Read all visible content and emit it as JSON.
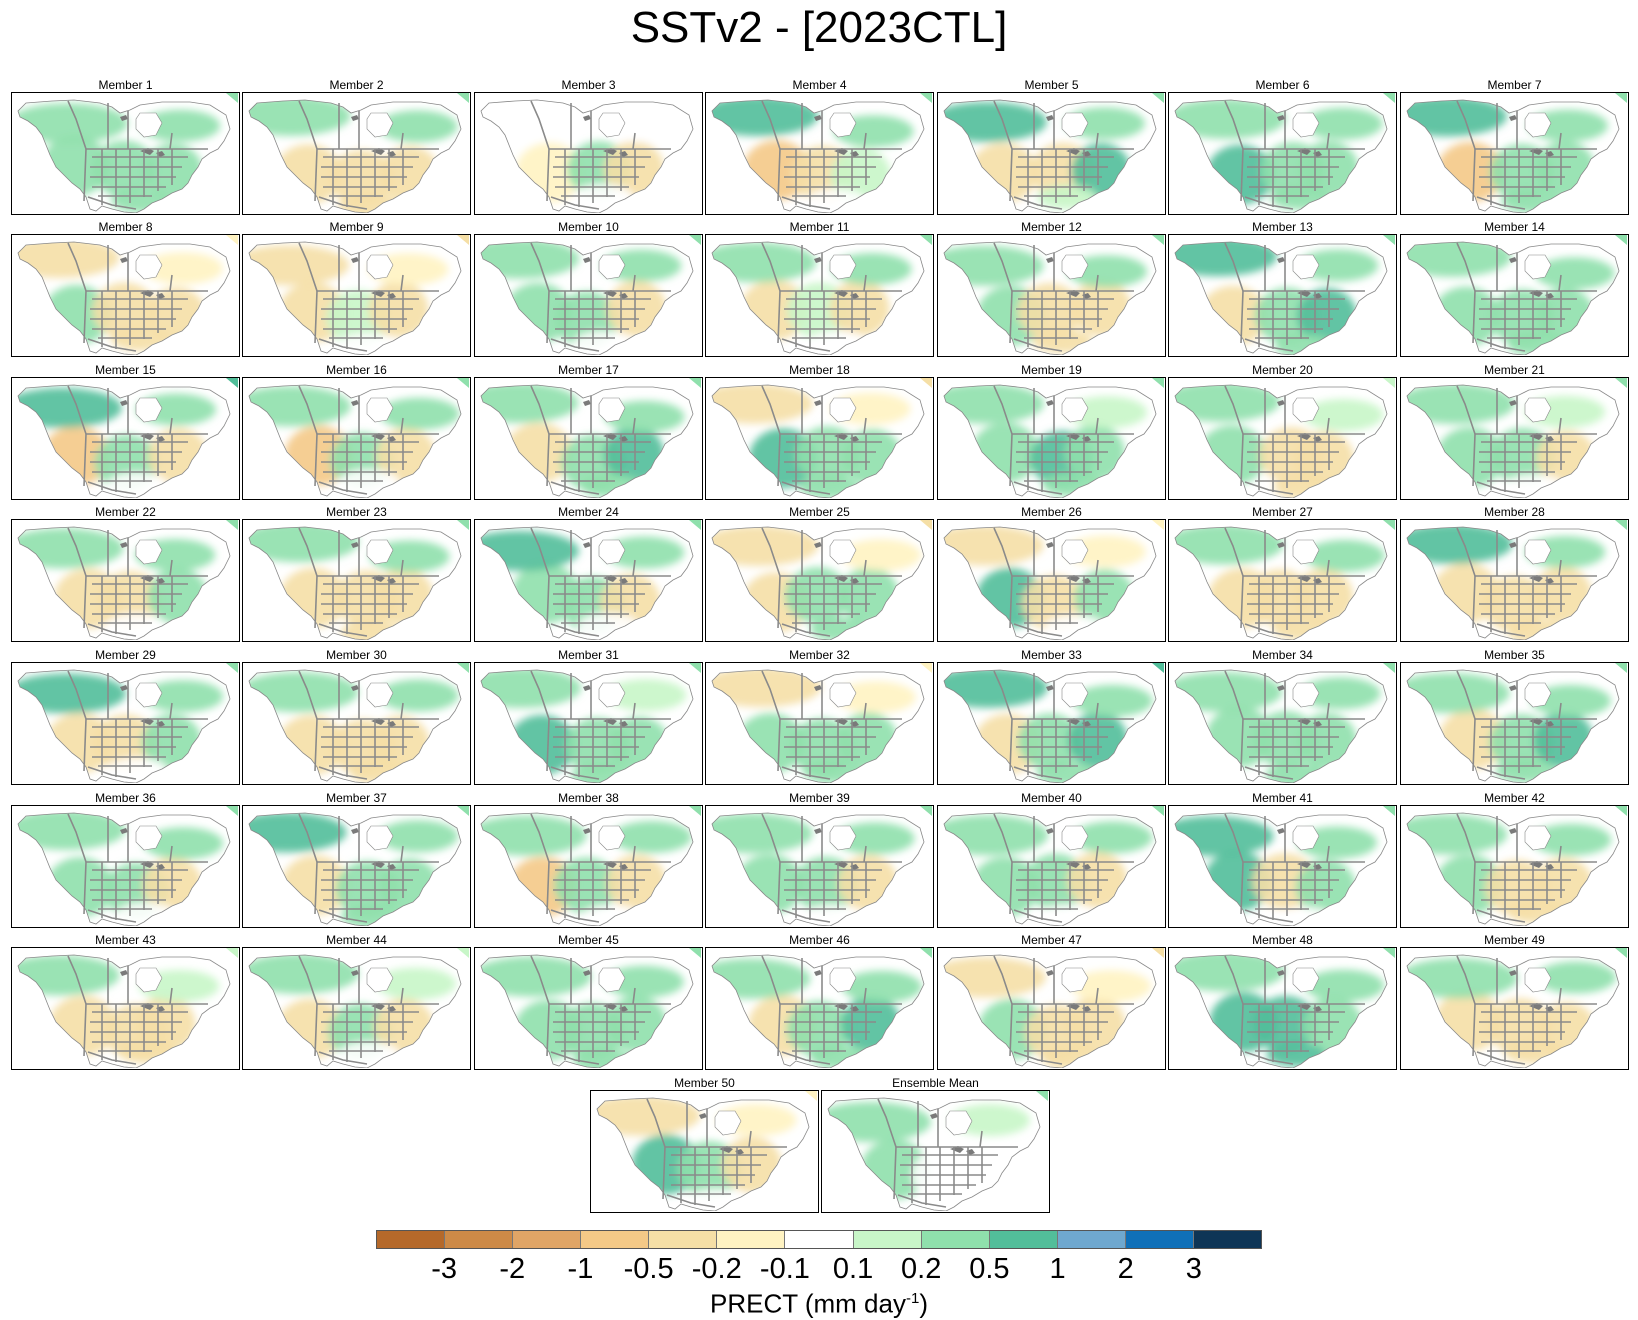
{
  "figure": {
    "title": "SSTv2 - [2023CTL]",
    "variable_label": "PRECT (mm day",
    "unit_exponent": "-1",
    "unit_close": ")"
  },
  "colors": {
    "land_outline": "#888888",
    "state_border": "#8a8a8a",
    "panel_border": "#000000"
  },
  "colorbar": {
    "ticks": [
      "-3",
      "-2",
      "-1",
      "-0.5",
      "-0.2",
      "-0.1",
      "0.1",
      "0.2",
      "0.5",
      "1",
      "2",
      "3"
    ],
    "colors": [
      "#b5692a",
      "#cd8a47",
      "#e0a566",
      "#f4c987",
      "#f5dfa6",
      "#fff3c2",
      "#ffffff",
      "#c8f6c8",
      "#8fe0ac",
      "#52be9a",
      "#6fa8cf",
      "#1070b8",
      "#0e3556"
    ]
  },
  "panels": [
    {
      "title": "Member 1",
      "w": 0.3,
      "n": 0.35,
      "c": 0.25,
      "e": 0.2
    },
    {
      "title": "Member 2",
      "w": -0.2,
      "n": 0.45,
      "c": -0.25,
      "e": -0.3
    },
    {
      "title": "Member 3",
      "w": -0.1,
      "n": 0.05,
      "c": 0.3,
      "e": -0.2
    },
    {
      "title": "Member 4",
      "w": -0.6,
      "n": 0.55,
      "c": -0.25,
      "e": 0.1
    },
    {
      "title": "Member 5",
      "w": -0.3,
      "n": 0.6,
      "c": -0.3,
      "e": 0.7
    },
    {
      "title": "Member 6",
      "w": 0.55,
      "n": 0.35,
      "c": 0.3,
      "e": 0.2
    },
    {
      "title": "Member 7",
      "w": -0.5,
      "n": 0.55,
      "c": 0.2,
      "e": 0.35
    },
    {
      "title": "Member 8",
      "w": 0.45,
      "n": -0.2,
      "c": -0.3,
      "e": -0.4
    },
    {
      "title": "Member 9",
      "w": -0.2,
      "n": -0.25,
      "c": 0.15,
      "e": -0.35
    },
    {
      "title": "Member 10",
      "w": 0.35,
      "n": 0.35,
      "c": 0.2,
      "e": -0.25
    },
    {
      "title": "Member 11",
      "w": -0.3,
      "n": 0.4,
      "c": 0.15,
      "e": -0.35
    },
    {
      "title": "Member 12",
      "w": 0.4,
      "n": 0.35,
      "c": -0.2,
      "e": -0.3
    },
    {
      "title": "Member 13",
      "w": -0.4,
      "n": 0.5,
      "c": 0.25,
      "e": 0.7
    },
    {
      "title": "Member 14",
      "w": 0.2,
      "n": 0.35,
      "c": 0.2,
      "e": 0.35
    },
    {
      "title": "Member 15",
      "w": -0.6,
      "n": 0.65,
      "c": 0.25,
      "e": -0.2
    },
    {
      "title": "Member 16",
      "w": -0.5,
      "n": 0.45,
      "c": 0.2,
      "e": -0.2
    },
    {
      "title": "Member 17",
      "w": -0.3,
      "n": 0.35,
      "c": 0.2,
      "e": 0.55
    },
    {
      "title": "Member 18",
      "w": 0.85,
      "n": -0.25,
      "c": 0.4,
      "e": 0.3
    },
    {
      "title": "Member 19",
      "w": 0.4,
      "n": 0.3,
      "c": 0.55,
      "e": 0.2
    },
    {
      "title": "Member 20",
      "w": 0.2,
      "n": 0.2,
      "c": -0.25,
      "e": -0.3
    },
    {
      "title": "Member 21",
      "w": 0.2,
      "n": 0.3,
      "c": 0.3,
      "e": -0.2
    },
    {
      "title": "Member 22",
      "w": -0.4,
      "n": 0.35,
      "c": -0.35,
      "e": 0.2
    },
    {
      "title": "Member 23",
      "w": -0.4,
      "n": 0.35,
      "c": -0.35,
      "e": -0.4
    },
    {
      "title": "Member 24",
      "w": 0.3,
      "n": 0.55,
      "c": 0.3,
      "e": -0.25
    },
    {
      "title": "Member 25",
      "w": -0.2,
      "n": -0.25,
      "c": 0.3,
      "e": 0.25
    },
    {
      "title": "Member 26",
      "w": 0.6,
      "n": -0.2,
      "c": -0.35,
      "e": 0.2
    },
    {
      "title": "Member 27",
      "w": -0.4,
      "n": 0.45,
      "c": -0.3,
      "e": -0.45
    },
    {
      "title": "Member 28",
      "w": -0.45,
      "n": 0.55,
      "c": -0.3,
      "e": -0.2
    },
    {
      "title": "Member 29",
      "w": -0.4,
      "n": 0.55,
      "c": -0.3,
      "e": 0.25
    },
    {
      "title": "Member 30",
      "w": -0.45,
      "n": 0.45,
      "c": -0.3,
      "e": -0.45
    },
    {
      "title": "Member 31",
      "w": 0.75,
      "n": 0.3,
      "c": 0.3,
      "e": 0.25
    },
    {
      "title": "Member 32",
      "w": 0.3,
      "n": -0.2,
      "c": 0.4,
      "e": 0.4
    },
    {
      "title": "Member 33",
      "w": -0.45,
      "n": 0.7,
      "c": 0.4,
      "e": 0.55
    },
    {
      "title": "Member 34",
      "w": 0.3,
      "n": 0.45,
      "c": 0.3,
      "e": 0.3
    },
    {
      "title": "Member 35",
      "w": -0.3,
      "n": 0.4,
      "c": 0.25,
      "e": 0.55
    },
    {
      "title": "Member 36",
      "w": 0.45,
      "n": 0.4,
      "c": 0.3,
      "e": -0.2
    },
    {
      "title": "Member 37",
      "w": -0.3,
      "n": 0.55,
      "c": 0.3,
      "e": 0.2
    },
    {
      "title": "Member 38",
      "w": -0.6,
      "n": 0.45,
      "c": 0.25,
      "e": -0.2
    },
    {
      "title": "Member 39",
      "w": 0.45,
      "n": 0.4,
      "c": 0.25,
      "e": -0.25
    },
    {
      "title": "Member 40",
      "w": 0.3,
      "n": 0.35,
      "c": 0.3,
      "e": -0.35
    },
    {
      "title": "Member 41",
      "w": 0.65,
      "n": 0.6,
      "c": -0.3,
      "e": 0.3
    },
    {
      "title": "Member 42",
      "w": 0.2,
      "n": 0.45,
      "c": -0.3,
      "e": -0.4
    },
    {
      "title": "Member 43",
      "w": -0.25,
      "n": 0.2,
      "c": -0.2,
      "e": -0.25
    },
    {
      "title": "Member 44",
      "w": -0.2,
      "n": 0.2,
      "c": 0.25,
      "e": -0.25
    },
    {
      "title": "Member 45",
      "w": 0.3,
      "n": 0.4,
      "c": 0.3,
      "e": 0.2
    },
    {
      "title": "Member 46",
      "w": -0.45,
      "n": 0.4,
      "c": 0.3,
      "e": 0.6
    },
    {
      "title": "Member 47",
      "w": 0.3,
      "n": -0.25,
      "c": -0.3,
      "e": -0.35
    },
    {
      "title": "Member 48",
      "w": 0.65,
      "n": 0.45,
      "c": 0.55,
      "e": 0.45
    },
    {
      "title": "Member 49",
      "w": -0.25,
      "n": 0.45,
      "c": -0.3,
      "e": -0.4
    },
    {
      "title": "Member 50",
      "w": 0.5,
      "n": -0.2,
      "c": 0.4,
      "e": -0.25
    },
    {
      "title": "Ensemble Mean",
      "w": 0.2,
      "n": 0.25,
      "c": 0.05,
      "e": 0.05
    }
  ]
}
